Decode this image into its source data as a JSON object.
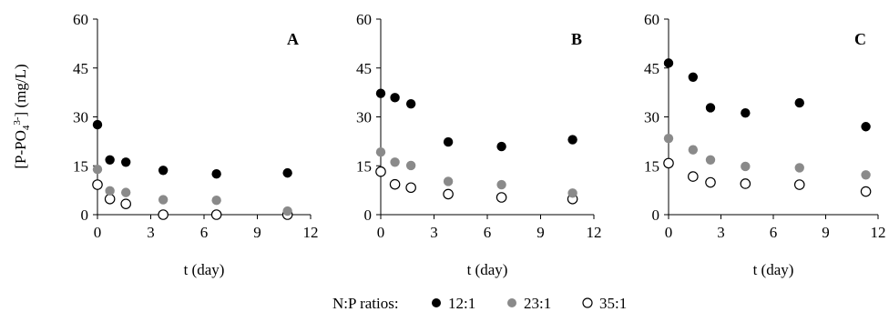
{
  "figure": {
    "ylabel_main": "[P-PO",
    "ylabel_sub": "4",
    "ylabel_sup": "3-",
    "ylabel_tail": "] (mg/L)",
    "legend_title": "N:P ratios:"
  },
  "colors": {
    "12:1": "#000000",
    "23:1": "#8a8a8a",
    "35:1": "#ffffff",
    "35:1_stroke": "#000000",
    "axis": "#000000"
  },
  "chart_data": [
    {
      "type": "scatter",
      "panel_label": "A",
      "xlabel": "t (day)",
      "xlim": [
        0,
        12
      ],
      "ylim": [
        0,
        60
      ],
      "x_ticks": [
        "0",
        "3",
        "6",
        "9",
        "12"
      ],
      "y_ticks": [
        "0",
        "15",
        "30",
        "45",
        "60"
      ],
      "grid": false,
      "series": [
        {
          "name": "12:1",
          "x": [
            0,
            0.7,
            1.6,
            3.7,
            6.7,
            10.7
          ],
          "y": [
            27.6,
            16.8,
            16.1,
            13.6,
            12.5,
            12.8
          ]
        },
        {
          "name": "23:1",
          "x": [
            0,
            0.7,
            1.6,
            3.7,
            6.7,
            10.7
          ],
          "y": [
            13.9,
            7.3,
            6.8,
            4.6,
            4.4,
            1.1
          ]
        },
        {
          "name": "35:1",
          "x": [
            0,
            0.7,
            1.6,
            3.7,
            6.7,
            10.7
          ],
          "y": [
            9.2,
            4.8,
            3.3,
            0.0,
            0.0,
            0.0
          ]
        }
      ]
    },
    {
      "type": "scatter",
      "panel_label": "B",
      "xlabel": "t (day)",
      "xlim": [
        0,
        12
      ],
      "ylim": [
        0,
        60
      ],
      "x_ticks": [
        "0",
        "3",
        "6",
        "9",
        "12"
      ],
      "y_ticks": [
        "0",
        "15",
        "30",
        "45",
        "60"
      ],
      "grid": false,
      "series": [
        {
          "name": "12:1",
          "x": [
            0,
            0.8,
            1.7,
            3.8,
            6.8,
            10.8
          ],
          "y": [
            37.2,
            35.9,
            34.0,
            22.3,
            20.9,
            23.0
          ]
        },
        {
          "name": "23:1",
          "x": [
            0,
            0.8,
            1.7,
            3.8,
            6.8,
            10.8
          ],
          "y": [
            19.2,
            16.1,
            15.1,
            10.2,
            9.2,
            6.6
          ]
        },
        {
          "name": "35:1",
          "x": [
            0,
            0.8,
            1.7,
            3.8,
            6.8,
            10.8
          ],
          "y": [
            13.2,
            9.3,
            8.3,
            6.3,
            5.3,
            4.8
          ]
        }
      ]
    },
    {
      "type": "scatter",
      "panel_label": "C",
      "xlabel": "t (day)",
      "xlim": [
        0,
        12
      ],
      "ylim": [
        0,
        60
      ],
      "x_ticks": [
        "0",
        "3",
        "6",
        "9",
        "12"
      ],
      "y_ticks": [
        "0",
        "15",
        "30",
        "45",
        "60"
      ],
      "grid": false,
      "series": [
        {
          "name": "12:1",
          "x": [
            0,
            1.4,
            2.4,
            4.4,
            7.5,
            11.3
          ],
          "y": [
            46.5,
            42.2,
            32.8,
            31.2,
            34.3,
            27.0
          ]
        },
        {
          "name": "23:1",
          "x": [
            0,
            1.4,
            2.4,
            4.4,
            7.5,
            11.3
          ],
          "y": [
            23.4,
            19.9,
            16.8,
            14.8,
            14.4,
            12.2
          ]
        },
        {
          "name": "35:1",
          "x": [
            0,
            1.4,
            2.4,
            4.4,
            7.5,
            11.3
          ],
          "y": [
            15.8,
            11.7,
            9.9,
            9.5,
            9.2,
            7.1
          ]
        }
      ]
    }
  ]
}
